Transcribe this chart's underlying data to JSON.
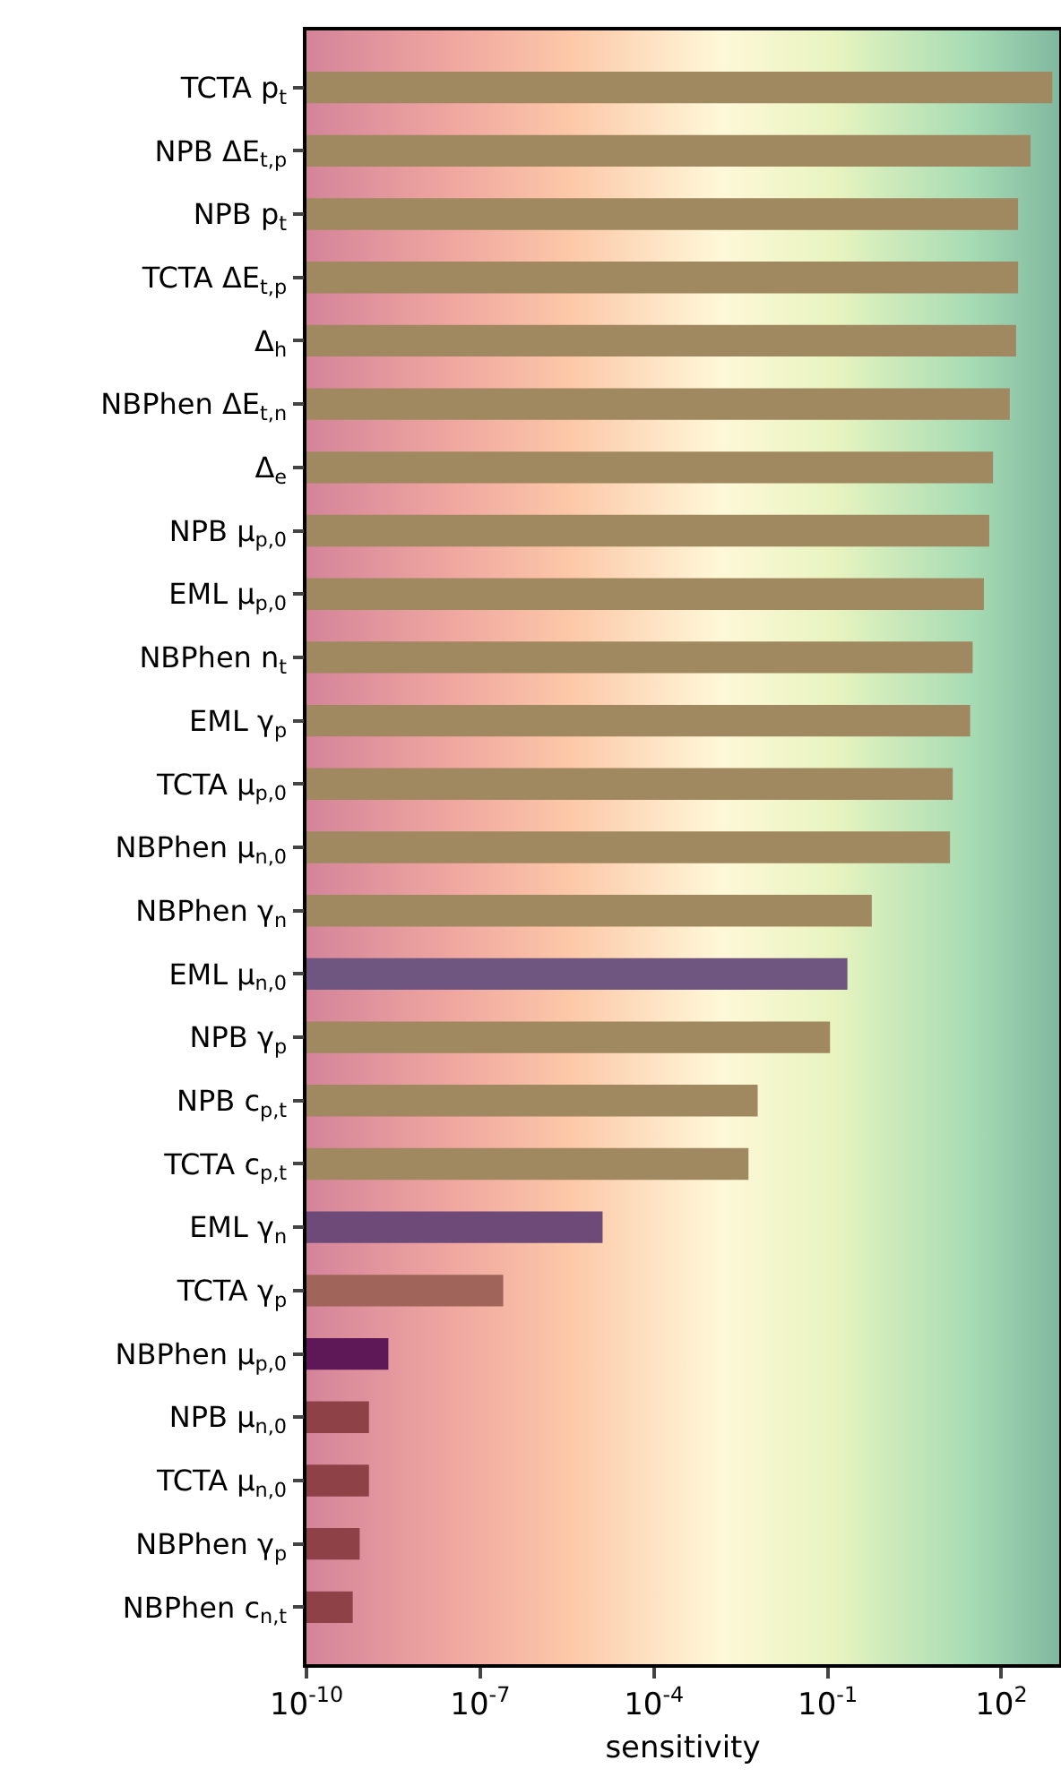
{
  "chart_data": {
    "type": "bar",
    "orientation": "horizontal",
    "log": "x",
    "xlabel": "sensitivity",
    "categories": [
      "TCTA p$_{t}$",
      "NPB ΔE$_{t,p}$",
      "NPB p$_{t}$",
      "TCTA ΔE$_{t,p}$",
      "Δ$_{h}$",
      "NBPhen ΔE$_{t,n}$",
      "Δ$_{e}$",
      "NPB μ$_{p,0}$",
      "EML μ$_{p,0}$",
      "NBPhen n$_{t}$",
      "EML γ$_{p}$",
      "TCTA μ$_{p,0}$",
      "NBPhen μ$_{n,0}$",
      "NBPhen γ$_{n}$",
      "EML μ$_{n,0}$",
      "NPB γ$_{p}$",
      "NPB c$_{p,t}$",
      "TCTA c$_{p,t}$",
      "EML γ$_{n}$",
      "TCTA γ$_{p}$",
      "NBPhen μ$_{p,0}$",
      "NPB μ$_{n,0}$",
      "TCTA μ$_{n,0}$",
      "NBPhen γ$_{p}$",
      "NBPhen c$_{n,t}$"
    ],
    "values": [
      760,
      320,
      195,
      195,
      180,
      140,
      72,
      62,
      50,
      32,
      29,
      14.5,
      13,
      0.58,
      0.22,
      0.11,
      0.0062,
      0.0043,
      1.3e-05,
      2.5e-07,
      2.6e-09,
      1.2e-09,
      1.2e-09,
      8.3e-10,
      6.3e-10
    ],
    "colors": [
      "#a08860",
      "#a08860",
      "#a08860",
      "#a08860",
      "#a08860",
      "#a08860",
      "#a08860",
      "#a08860",
      "#a08860",
      "#a08860",
      "#a08860",
      "#a08860",
      "#a08860",
      "#a08860",
      "#6e5680",
      "#a08860",
      "#a08860",
      "#a08860",
      "#6e4a78",
      "#a0645a",
      "#5e1858",
      "#8e4248",
      "#8e4248",
      "#8e4248",
      "#8e4248"
    ],
    "xlim": [
      1e-10,
      1000
    ],
    "xticks": [
      {
        "value": 1e-10,
        "label": "10$^{-10}$"
      },
      {
        "value": 1e-07,
        "label": "10$^{-7}$"
      },
      {
        "value": 0.0001,
        "label": "10$^{-4}$"
      },
      {
        "value": 0.1,
        "label": "10$^{-1}$"
      },
      {
        "value": 100,
        "label": "10$^{2}$"
      }
    ],
    "grid": false
  }
}
